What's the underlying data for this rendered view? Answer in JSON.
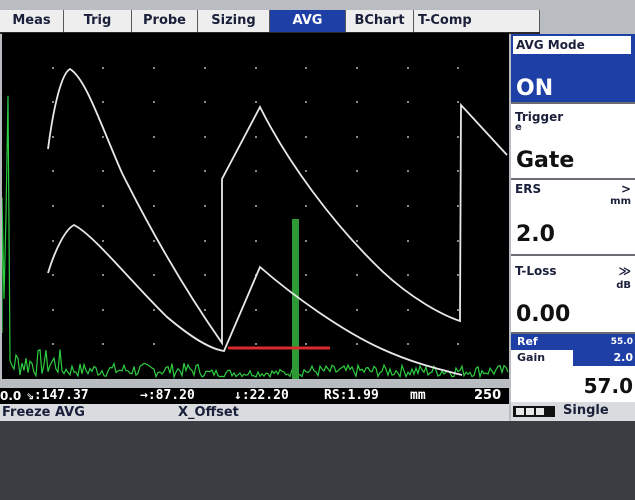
{
  "tabs": [
    {
      "label": "Meas",
      "active": false
    },
    {
      "label": "Trig",
      "active": false
    },
    {
      "label": "Probe",
      "active": false
    },
    {
      "label": "Sizing",
      "active": false
    },
    {
      "label": "AVG",
      "active": true
    },
    {
      "label": "BChart",
      "active": false
    },
    {
      "label": "T-Comp",
      "active": false
    }
  ],
  "panel": {
    "avg_mode": {
      "label": "AVG Mode",
      "value": "ON"
    },
    "trigger": {
      "label": "Trigger",
      "sub": "e",
      "value": "Gate"
    },
    "ers": {
      "label": "ERS",
      "arrow": ">",
      "unit": "mm",
      "value": "2.0"
    },
    "tloss": {
      "label": "T-Loss",
      "arrow": "≫",
      "unit": "dB",
      "value": "0.00"
    },
    "ref": {
      "label": "Ref",
      "value": "55.0"
    },
    "gain": {
      "label": "Gain",
      "step": "2.0",
      "value": "57.0"
    },
    "mode": "Single"
  },
  "readout": {
    "scale_min": "0.0",
    "scale_max": "250",
    "r1": "⇘:147.37",
    "r2": "→:87.20",
    "r3": "↓:22.20",
    "r4": "RS:1.99",
    "unit": "mm"
  },
  "status": {
    "left": "Freeze AVG",
    "center": "X_Offset"
  },
  "colors": {
    "accent": "#1e3fa6",
    "trace": "#2ecc40",
    "curve": "#e8e8e8",
    "gate": "#d92b2b"
  }
}
